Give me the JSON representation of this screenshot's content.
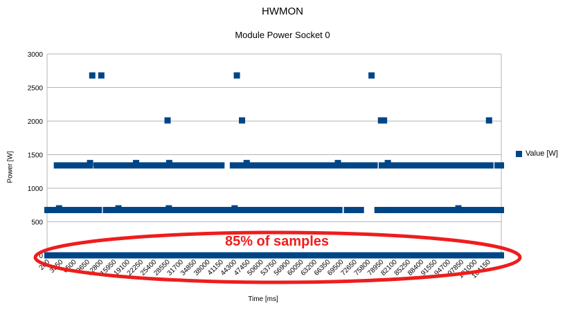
{
  "chart_data": {
    "type": "scatter",
    "title": "HWMON",
    "subtitle": "Module Power Socket 0",
    "xlabel": "Time [ms]",
    "ylabel": "Power [W]",
    "ylim": [
      0,
      3000
    ],
    "yticks": [
      "0",
      "500",
      "1000",
      "1500",
      "2000",
      "2500",
      "3000"
    ],
    "xtick_labels": [
      "200",
      "3350",
      "6500",
      "9650",
      "12800",
      "15950",
      "19100",
      "22250",
      "25400",
      "28550",
      "31700",
      "34850",
      "38000",
      "41150",
      "44300",
      "47450",
      "50600",
      "53750",
      "56900",
      "60050",
      "63200",
      "66350",
      "69500",
      "72650",
      "75800",
      "78950",
      "82100",
      "85250",
      "88400",
      "91550",
      "94700",
      "97850",
      "101000",
      "104150"
    ],
    "xlim": [
      200,
      105750
    ],
    "grid": "horizontal",
    "legend_position": "right",
    "series": [
      {
        "name": "Value [W]",
        "color": "#004586",
        "zero_segments": [
          [
            200,
            105750
          ]
        ],
        "low_segments": [
          [
            200,
            1600
          ],
          [
            2400,
            12300
          ],
          [
            13800,
            42700
          ],
          [
            43900,
            68200
          ],
          [
            69800,
            73200
          ],
          [
            76900,
            78200
          ],
          [
            79300,
            95800
          ],
          [
            96400,
            101100
          ],
          [
            102200,
            103500
          ],
          [
            104300,
            105750
          ]
        ],
        "mid_segments": [
          [
            2400,
            10200
          ],
          [
            11600,
            12600
          ],
          [
            13800,
            16800
          ],
          [
            17300,
            40800
          ],
          [
            43300,
            47800
          ],
          [
            48300,
            69800
          ],
          [
            70300,
            73200
          ],
          [
            73900,
            76400
          ],
          [
            77900,
            87300
          ],
          [
            88400,
            91200
          ],
          [
            92400,
            103300
          ],
          [
            104800,
            105750
          ]
        ],
        "mid_bumps": [
          10100,
          20800,
          28500,
          46500,
          67700,
          79300
        ],
        "low_bumps": [
          2900,
          16700,
          28400,
          43700,
          95700
        ],
        "high_points": [
          [
            10700,
            2680
          ],
          [
            12800,
            2680
          ],
          [
            44300,
            2680
          ],
          [
            75600,
            2680
          ],
          [
            28200,
            2010
          ],
          [
            45500,
            2010
          ],
          [
            77800,
            2010
          ],
          [
            78500,
            2010
          ],
          [
            102900,
            2010
          ]
        ]
      }
    ]
  },
  "annotation": {
    "text": "85% of samples",
    "color": "#ee1d1d"
  }
}
